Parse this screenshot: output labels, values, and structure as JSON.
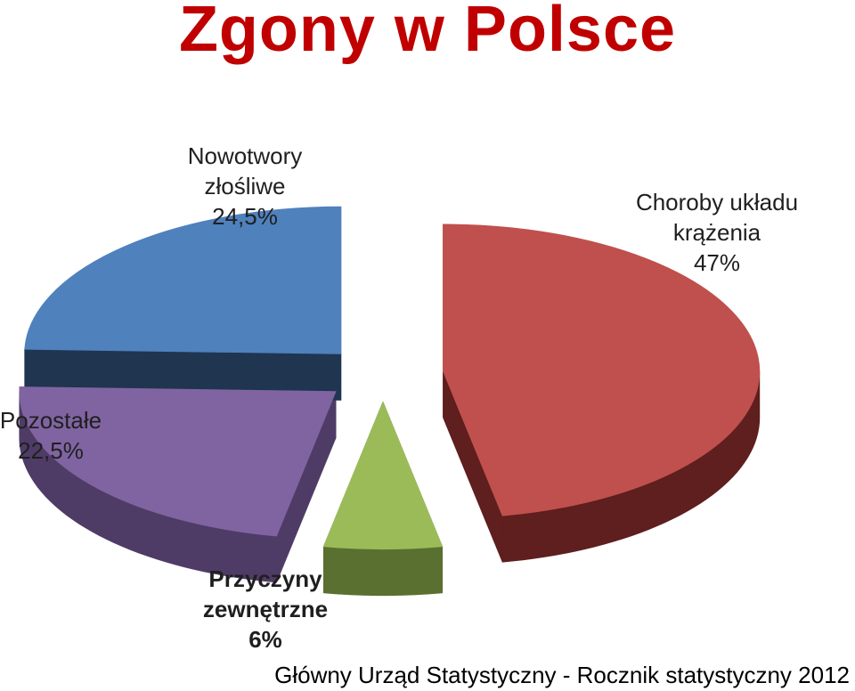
{
  "title": "Zgony w Polsce",
  "source": "Główny Urząd Statystyczny - Rocznik statystyczny 2012",
  "chart_data": {
    "type": "pie",
    "title": "Zgony w Polsce",
    "slices": [
      {
        "label_lines": [
          "Choroby układu",
          "krążenia"
        ],
        "value_text": "47%",
        "value": 47,
        "color": "#c0504d",
        "side_color": "#5e1f1e"
      },
      {
        "label_lines": [
          "Przyczyny",
          "zewnętrzne"
        ],
        "value_text": "6%",
        "value": 6,
        "color": "#9bbb59",
        "side_color": "#5a7030"
      },
      {
        "label_lines": [
          "Pozostałe"
        ],
        "value_text": "22,5%",
        "value": 22.5,
        "color": "#8064a2",
        "side_color": "#4e3c66"
      },
      {
        "label_lines": [
          "Nowotwory",
          "złośliwe"
        ],
        "value_text": "24,5%",
        "value": 24.5,
        "color": "#4f81bd",
        "side_color": "#1f3550"
      }
    ]
  }
}
